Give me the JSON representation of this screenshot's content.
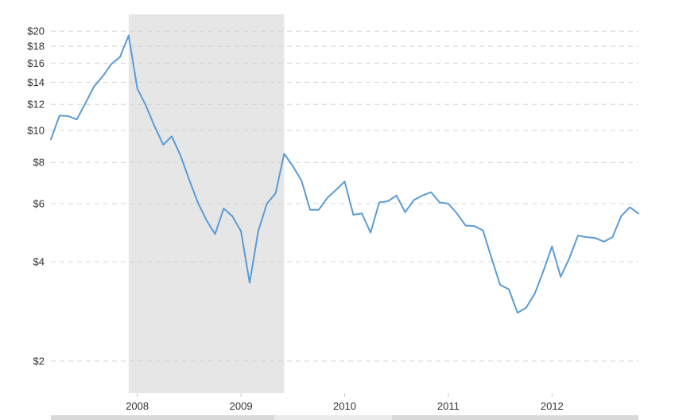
{
  "chart_data": {
    "type": "line",
    "title": "",
    "xlabel": "",
    "ylabel": "",
    "y_scale": "log",
    "ylim": [
      1.6,
      22.5
    ],
    "xlim": [
      "2007-03",
      "2012-11"
    ],
    "grid": "horizontal dashed",
    "y_ticks": [
      {
        "value": 20,
        "label": "$20"
      },
      {
        "value": 18,
        "label": "$18"
      },
      {
        "value": 16,
        "label": "$16"
      },
      {
        "value": 14,
        "label": "$14"
      },
      {
        "value": 12,
        "label": "$12"
      },
      {
        "value": 10,
        "label": "$10"
      },
      {
        "value": 8,
        "label": "$8"
      },
      {
        "value": 6,
        "label": "$6"
      },
      {
        "value": 4,
        "label": "$4"
      },
      {
        "value": 2,
        "label": "$2"
      }
    ],
    "x_ticks": [
      {
        "date": "2008-01",
        "label": "2008"
      },
      {
        "date": "2009-01",
        "label": "2009"
      },
      {
        "date": "2010-01",
        "label": "2010"
      },
      {
        "date": "2011-01",
        "label": "2011"
      },
      {
        "date": "2012-01",
        "label": "2012"
      }
    ],
    "shaded_region": {
      "start": "2007-12",
      "end": "2009-06",
      "color": "#e6e6e6"
    },
    "series": [
      {
        "color": "#5b9bd5",
        "points": [
          [
            "2007-03",
            9.4
          ],
          [
            "2007-04",
            11.1
          ],
          [
            "2007-05",
            11.05
          ],
          [
            "2007-06",
            10.8
          ],
          [
            "2007-07",
            12.1
          ],
          [
            "2007-08",
            13.6
          ],
          [
            "2007-09",
            14.6
          ],
          [
            "2007-10",
            15.9
          ],
          [
            "2007-11",
            16.7
          ],
          [
            "2007-12",
            19.4
          ],
          [
            "2008-01",
            13.4
          ],
          [
            "2008-02",
            11.9
          ],
          [
            "2008-03",
            10.3
          ],
          [
            "2008-04",
            9.05
          ],
          [
            "2008-05",
            9.6
          ],
          [
            "2008-06",
            8.4
          ],
          [
            "2008-07",
            7.1
          ],
          [
            "2008-08",
            6.05
          ],
          [
            "2008-09",
            5.35
          ],
          [
            "2008-10",
            4.85
          ],
          [
            "2008-11",
            5.8
          ],
          [
            "2008-12",
            5.5
          ],
          [
            "2009-01",
            4.95
          ],
          [
            "2009-02",
            3.45
          ],
          [
            "2009-03",
            4.95
          ],
          [
            "2009-04",
            6.0
          ],
          [
            "2009-05",
            6.45
          ],
          [
            "2009-06",
            8.5
          ],
          [
            "2009-07",
            7.8
          ],
          [
            "2009-08",
            7.05
          ],
          [
            "2009-09",
            5.75
          ],
          [
            "2009-10",
            5.75
          ],
          [
            "2009-11",
            6.25
          ],
          [
            "2009-12",
            6.6
          ],
          [
            "2010-01",
            7.0
          ],
          [
            "2010-02",
            5.55
          ],
          [
            "2010-03",
            5.6
          ],
          [
            "2010-04",
            4.9
          ],
          [
            "2010-05",
            6.05
          ],
          [
            "2010-06",
            6.1
          ],
          [
            "2010-07",
            6.35
          ],
          [
            "2010-08",
            5.65
          ],
          [
            "2010-09",
            6.15
          ],
          [
            "2010-10",
            6.35
          ],
          [
            "2010-11",
            6.5
          ],
          [
            "2010-12",
            6.05
          ],
          [
            "2011-01",
            6.0
          ],
          [
            "2011-02",
            5.6
          ],
          [
            "2011-03",
            5.15
          ],
          [
            "2011-04",
            5.13
          ],
          [
            "2011-05",
            4.98
          ],
          [
            "2011-06",
            4.1
          ],
          [
            "2011-07",
            3.4
          ],
          [
            "2011-08",
            3.3
          ],
          [
            "2011-09",
            2.8
          ],
          [
            "2011-10",
            2.9
          ],
          [
            "2011-11",
            3.2
          ],
          [
            "2011-12",
            3.75
          ],
          [
            "2012-01",
            4.45
          ],
          [
            "2012-02",
            3.6
          ],
          [
            "2012-03",
            4.1
          ],
          [
            "2012-04",
            4.8
          ],
          [
            "2012-05",
            4.75
          ],
          [
            "2012-06",
            4.72
          ],
          [
            "2012-07",
            4.6
          ],
          [
            "2012-08",
            4.75
          ],
          [
            "2012-09",
            5.5
          ],
          [
            "2012-10",
            5.85
          ],
          [
            "2012-11",
            5.6
          ]
        ]
      }
    ]
  }
}
